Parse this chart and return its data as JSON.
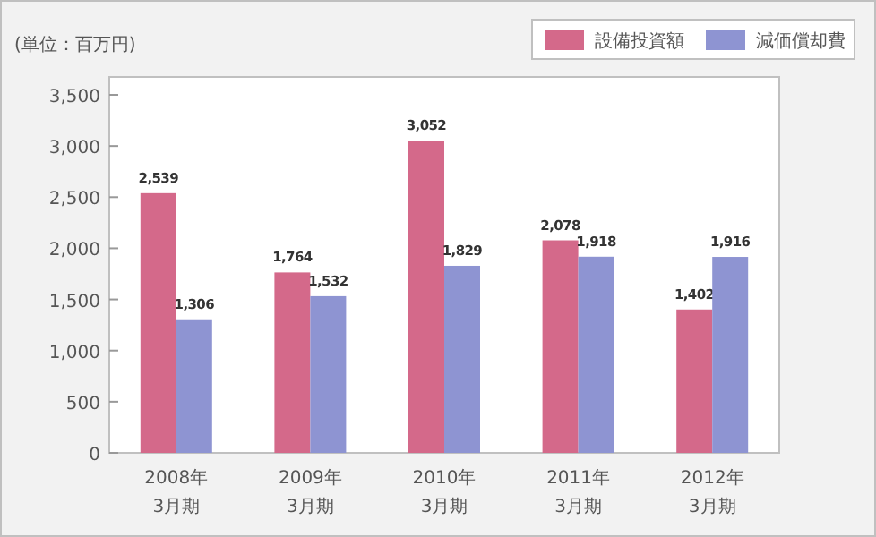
{
  "chart_data": {
    "type": "bar",
    "ylabel": "(単位：百万円)",
    "categories": [
      "2008年\n3月期",
      "2009年\n3月期",
      "2010年\n3月期",
      "2011年\n3月期",
      "2012年\n3月期"
    ],
    "series": [
      {
        "name": "設備投資額",
        "color": "#d4698a",
        "values": [
          2539,
          1764,
          3052,
          2078,
          1402
        ]
      },
      {
        "name": "減価償却費",
        "color": "#8e94d2",
        "values": [
          1306,
          1532,
          1829,
          1918,
          1916
        ]
      }
    ],
    "ylim": [
      0,
      3675
    ],
    "yticks": [
      0,
      {
        "value": 500,
        "label": "500"
      },
      {
        "value": 1000,
        "label": "1,000"
      },
      {
        "value": 1500,
        "label": "1,500"
      },
      {
        "value": 2000,
        "label": "2,000"
      },
      {
        "value": 2500,
        "label": "2,500"
      },
      {
        "value": 3000,
        "label": "3,000"
      },
      {
        "value": 3500,
        "label": "3,500"
      }
    ],
    "grid": false,
    "legend": "top right",
    "value_labels": [
      [
        "2,539",
        "1,764",
        "3,052",
        "2,078",
        "1,402"
      ],
      [
        "1,306",
        "1,532",
        "1,829",
        "1,918",
        "1,916"
      ]
    ]
  }
}
